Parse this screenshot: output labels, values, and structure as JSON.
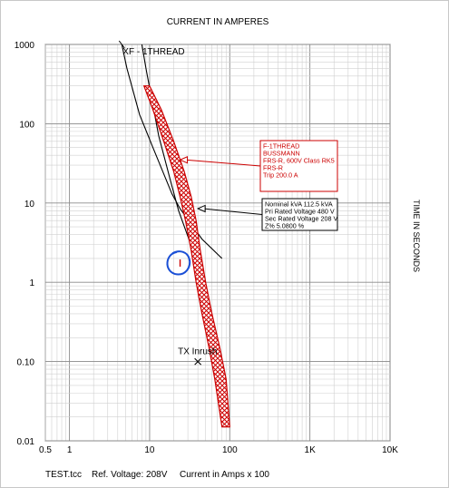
{
  "chart_data": {
    "type": "line",
    "title": "CURRENT IN AMPERES",
    "ylabel": "TIME IN SECONDS",
    "x_scale": "log",
    "y_scale": "log",
    "xlim": [
      0.5,
      10000
    ],
    "ylim": [
      0.01,
      1000
    ],
    "grid": true,
    "x_ticks": [
      {
        "value": 0.5,
        "label": "0.5"
      },
      {
        "value": 1,
        "label": "1"
      },
      {
        "value": 10,
        "label": "10"
      },
      {
        "value": 100,
        "label": "100"
      },
      {
        "value": 1000,
        "label": "1K"
      },
      {
        "value": 10000,
        "label": "10K"
      }
    ],
    "y_ticks": [
      {
        "value": 1000,
        "label": "1000"
      },
      {
        "value": 100,
        "label": "100"
      },
      {
        "value": 10,
        "label": "10"
      },
      {
        "value": 1,
        "label": "1"
      },
      {
        "value": 0.1,
        "label": "0.10"
      },
      {
        "value": 0.01,
        "label": "0.01"
      }
    ],
    "series": [
      {
        "name": "XF - 1THREAD",
        "color": "#000000",
        "style": "transformer-damage-curves",
        "curves": [
          {
            "x": [
              4.5,
              5.2,
              7.5,
              11,
              19,
              24,
              45,
              80
            ],
            "y": [
              1000,
              500,
              130,
              50,
              13,
              8.5,
              3.5,
              2.0
            ]
          },
          {
            "x": [
              8,
              9,
              11,
              13,
              18,
              23,
              30,
              38
            ],
            "y": [
              1000,
              500,
              170,
              70,
              20,
              8.0,
              3.8,
              2.0
            ]
          }
        ],
        "label_point": {
          "x": 4.5,
          "y": 1000
        }
      },
      {
        "name": "F-1THREAD",
        "color": "#cc0000",
        "style": "fuse-band",
        "min_curve": {
          "x": [
            8.5,
            11,
            15,
            20,
            24,
            28,
            33,
            38,
            45,
            55,
            65,
            80
          ],
          "y": [
            300,
            150,
            60,
            25,
            12,
            6,
            2.5,
            1.0,
            0.4,
            0.15,
            0.06,
            0.015
          ]
        },
        "max_curve": {
          "x": [
            10,
            14,
            20,
            27,
            33,
            38,
            43,
            50,
            60,
            75,
            90,
            100
          ],
          "y": [
            300,
            150,
            60,
            25,
            12,
            6,
            2.5,
            1.0,
            0.4,
            0.15,
            0.06,
            0.015
          ]
        }
      },
      {
        "name": "TX Inrush",
        "color": "#000000",
        "style": "point",
        "x": [
          40
        ],
        "y": [
          0.1
        ],
        "label": "TX Inrush"
      }
    ],
    "annotations": [
      {
        "name": "fuse-info",
        "color": "#cc0000",
        "lines": [
          "F-1THREAD",
          "BUSSMANN",
          "FRS-R, 600V Class RK5",
          "FRS-R",
          "Trip 200.0 A"
        ],
        "points_to": {
          "x": 24,
          "y": 35
        }
      },
      {
        "name": "transformer-info",
        "color": "#000000",
        "lines": [
          "Nominal kVA 112.5 kVA",
          "Pri Rated Voltage 480 V",
          "Sec Rated Voltage 208 V",
          "Z% 5.0800 %"
        ],
        "points_to": {
          "x": 40,
          "y": 8.5
        }
      }
    ],
    "markup": {
      "color": "#1a4fd6",
      "at": {
        "x": 24,
        "y": 1.75
      }
    }
  },
  "footer": {
    "file": "TEST.tcc",
    "ref_voltage": "Ref. Voltage: 208V",
    "current_note": "Current in Amps x 100"
  }
}
